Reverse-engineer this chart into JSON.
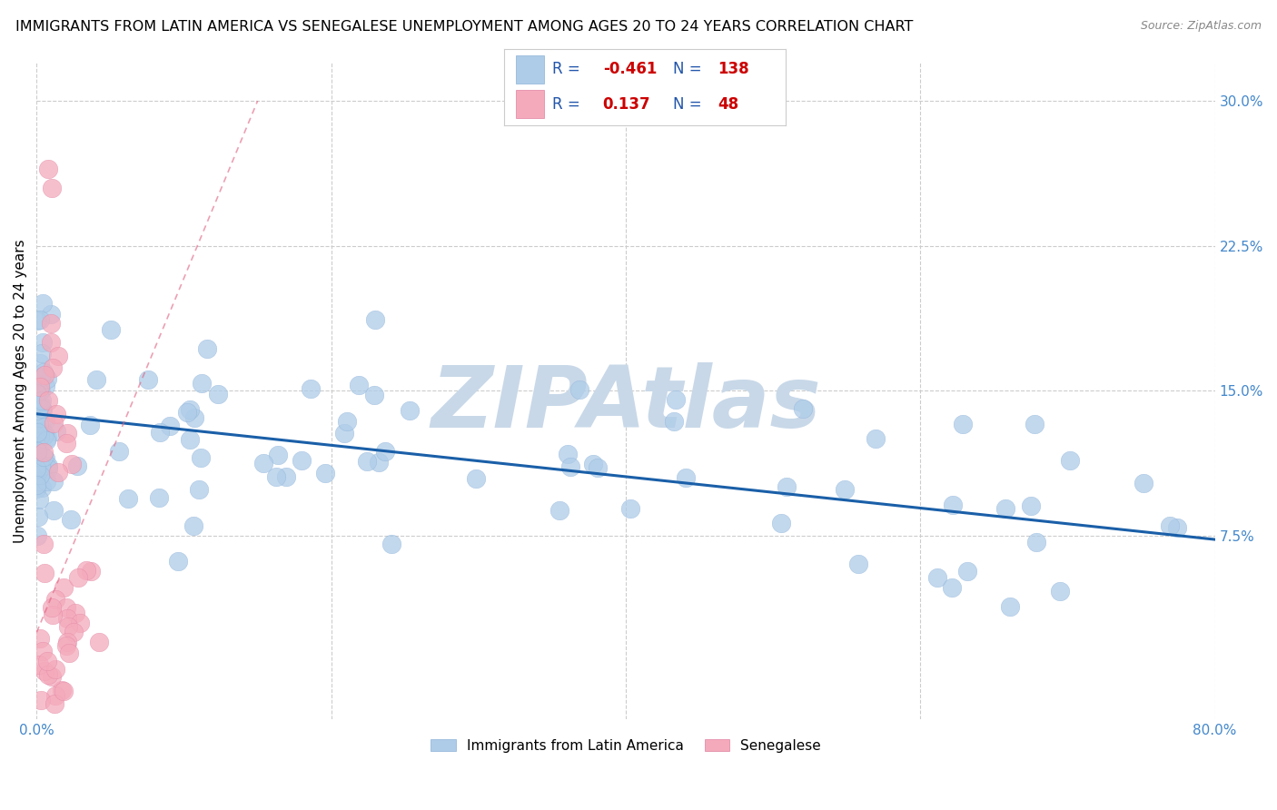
{
  "title": "IMMIGRANTS FROM LATIN AMERICA VS SENEGALESE UNEMPLOYMENT AMONG AGES 20 TO 24 YEARS CORRELATION CHART",
  "source": "Source: ZipAtlas.com",
  "ylabel": "Unemployment Among Ages 20 to 24 years",
  "xlim": [
    0,
    0.8
  ],
  "ylim": [
    -0.02,
    0.32
  ],
  "blue_R": -0.461,
  "blue_N": 138,
  "pink_R": 0.137,
  "pink_N": 48,
  "blue_color": "#aecce8",
  "blue_edge_color": "#8ab0d8",
  "blue_line_color": "#1a5fa8",
  "pink_color": "#f4aabb",
  "pink_edge_color": "#e080a0",
  "pink_line_color": "#e06080",
  "blue_label": "Immigrants from Latin America",
  "pink_label": "Senegalese",
  "background_color": "#ffffff",
  "watermark": "ZIPAtlas",
  "watermark_color": "#c8d8e8",
  "grid_color": "#cccccc",
  "title_fontsize": 11.5,
  "axis_label_fontsize": 11,
  "tick_fontsize": 11,
  "right_tick_color": "#4488cc",
  "legend_text_color": "#2255aa",
  "legend_rn_color": "#cc0000",
  "blue_trend_x0": 0.0,
  "blue_trend_y0": 0.138,
  "blue_trend_x1": 0.8,
  "blue_trend_y1": 0.073,
  "pink_trend_x0": 0.0,
  "pink_trend_y0": 0.025,
  "pink_trend_x1": 0.15,
  "pink_trend_y1": 0.3
}
